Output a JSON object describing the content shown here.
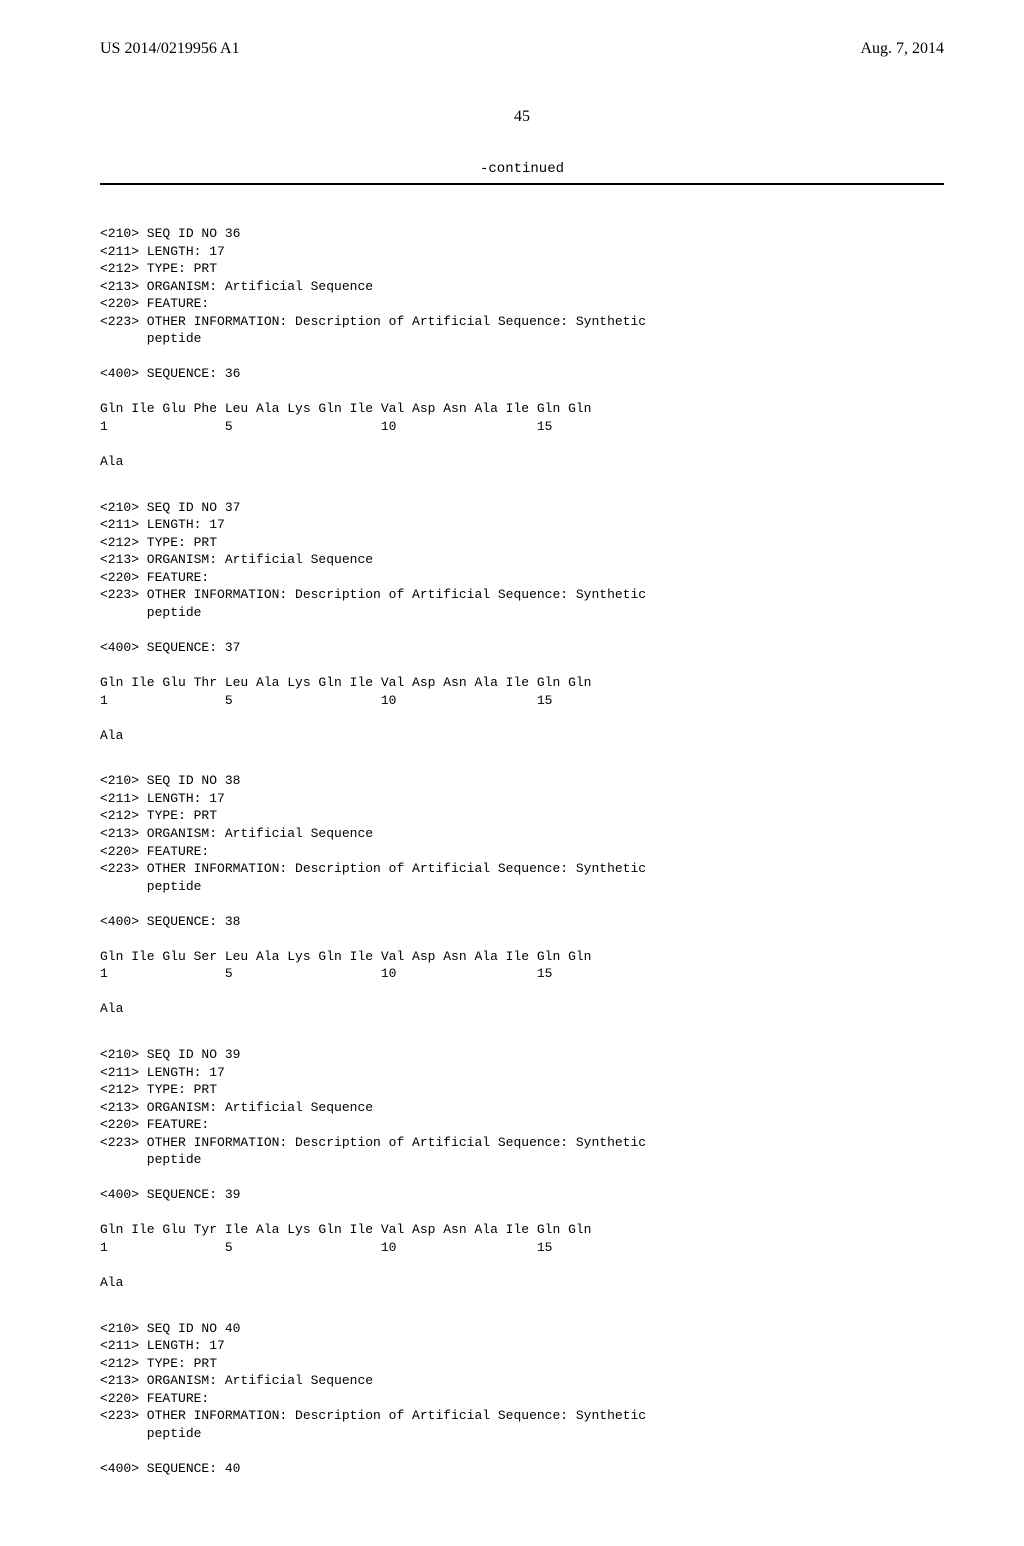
{
  "header": {
    "left": "US 2014/0219956 A1",
    "right": "Aug. 7, 2014"
  },
  "page_number": "45",
  "continued_label": "-continued",
  "entries": [
    {
      "seq_id": "<210> SEQ ID NO 36",
      "length": "<211> LENGTH: 17",
      "type": "<212> TYPE: PRT",
      "organism": "<213> ORGANISM: Artificial Sequence",
      "feature": "<220> FEATURE:",
      "other_info_1": "<223> OTHER INFORMATION: Description of Artificial Sequence: Synthetic",
      "other_info_2": "      peptide",
      "seq_header": "<400> SEQUENCE: 36",
      "seq_line": "Gln Ile Glu Phe Leu Ala Lys Gln Ile Val Asp Asn Ala Ile Gln Gln",
      "num_line": "1               5                   10                  15",
      "tail": "Ala"
    },
    {
      "seq_id": "<210> SEQ ID NO 37",
      "length": "<211> LENGTH: 17",
      "type": "<212> TYPE: PRT",
      "organism": "<213> ORGANISM: Artificial Sequence",
      "feature": "<220> FEATURE:",
      "other_info_1": "<223> OTHER INFORMATION: Description of Artificial Sequence: Synthetic",
      "other_info_2": "      peptide",
      "seq_header": "<400> SEQUENCE: 37",
      "seq_line": "Gln Ile Glu Thr Leu Ala Lys Gln Ile Val Asp Asn Ala Ile Gln Gln",
      "num_line": "1               5                   10                  15",
      "tail": "Ala"
    },
    {
      "seq_id": "<210> SEQ ID NO 38",
      "length": "<211> LENGTH: 17",
      "type": "<212> TYPE: PRT",
      "organism": "<213> ORGANISM: Artificial Sequence",
      "feature": "<220> FEATURE:",
      "other_info_1": "<223> OTHER INFORMATION: Description of Artificial Sequence: Synthetic",
      "other_info_2": "      peptide",
      "seq_header": "<400> SEQUENCE: 38",
      "seq_line": "Gln Ile Glu Ser Leu Ala Lys Gln Ile Val Asp Asn Ala Ile Gln Gln",
      "num_line": "1               5                   10                  15",
      "tail": "Ala"
    },
    {
      "seq_id": "<210> SEQ ID NO 39",
      "length": "<211> LENGTH: 17",
      "type": "<212> TYPE: PRT",
      "organism": "<213> ORGANISM: Artificial Sequence",
      "feature": "<220> FEATURE:",
      "other_info_1": "<223> OTHER INFORMATION: Description of Artificial Sequence: Synthetic",
      "other_info_2": "      peptide",
      "seq_header": "<400> SEQUENCE: 39",
      "seq_line": "Gln Ile Glu Tyr Ile Ala Lys Gln Ile Val Asp Asn Ala Ile Gln Gln",
      "num_line": "1               5                   10                  15",
      "tail": "Ala"
    },
    {
      "seq_id": "<210> SEQ ID NO 40",
      "length": "<211> LENGTH: 17",
      "type": "<212> TYPE: PRT",
      "organism": "<213> ORGANISM: Artificial Sequence",
      "feature": "<220> FEATURE:",
      "other_info_1": "<223> OTHER INFORMATION: Description of Artificial Sequence: Synthetic",
      "other_info_2": "      peptide",
      "seq_header": "<400> SEQUENCE: 40",
      "seq_line": "",
      "num_line": "",
      "tail": ""
    }
  ]
}
